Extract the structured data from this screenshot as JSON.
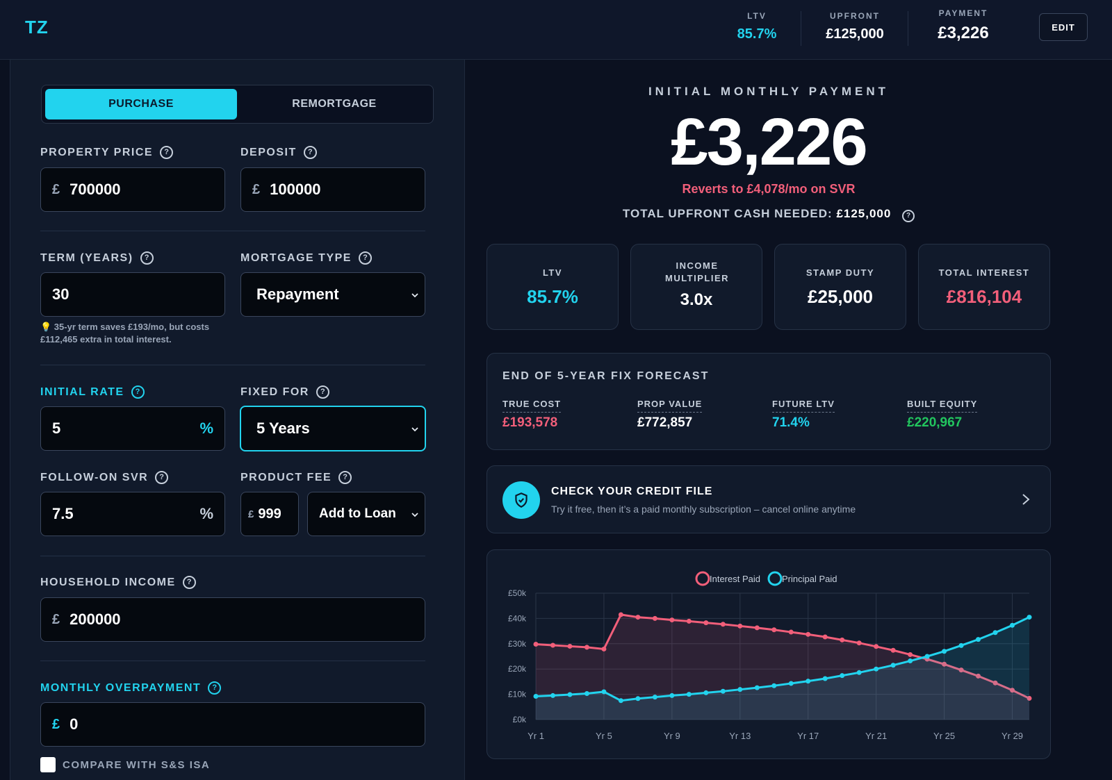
{
  "header": {
    "logo": "TZ",
    "stats": [
      {
        "label": "LTV",
        "value": "85.7%",
        "color": "#22d3ee"
      },
      {
        "label": "UPFRONT",
        "value": "£125,000"
      },
      {
        "label": "PAYMENT",
        "value": "£3,226"
      }
    ],
    "edit_label": "EDIT"
  },
  "form": {
    "mode_tabs": [
      {
        "label": "PURCHASE",
        "active": true
      },
      {
        "label": "REMORTGAGE",
        "active": false
      }
    ],
    "property_price": {
      "label": "PROPERTY PRICE",
      "currency": "£",
      "value": "700000"
    },
    "deposit": {
      "label": "DEPOSIT",
      "currency": "£",
      "value": "100000"
    },
    "term": {
      "label": "TERM (YEARS)",
      "value": "30",
      "hint": "💡 35-yr term saves £193/mo, but costs £112,465 extra in total interest."
    },
    "mortgage_type": {
      "label": "MORTGAGE TYPE",
      "value": "Repayment"
    },
    "initial_rate": {
      "label": "INITIAL RATE",
      "value": "5",
      "suffix": "%"
    },
    "fixed_for": {
      "label": "FIXED FOR",
      "value": "5 Years"
    },
    "follow_on_svr": {
      "label": "FOLLOW-ON SVR",
      "value": "7.5",
      "suffix": "%"
    },
    "product_fee": {
      "label": "PRODUCT FEE",
      "currency": "£",
      "value": "999",
      "option": "Add to Loan"
    },
    "household_income": {
      "label": "HOUSEHOLD INCOME",
      "currency": "£",
      "value": "200000"
    },
    "monthly_overpayment": {
      "label": "MONTHLY OVERPAYMENT",
      "currency": "£",
      "value": "0"
    },
    "compare_label": "COMPARE WITH S&S ISA"
  },
  "summary": {
    "title": "INITIAL MONTHLY PAYMENT",
    "payment": "£3,226",
    "reverts": "Reverts to £4,078/mo on SVR",
    "upfront_label": "TOTAL UPFRONT CASH NEEDED:",
    "upfront_value": "£125,000",
    "cards": [
      {
        "label": "LTV",
        "value": "85.7%",
        "color": "#22d3ee"
      },
      {
        "label": "INCOME MULTIPLIER",
        "value": "3.0x",
        "color": "#ffffff"
      },
      {
        "label": "STAMP DUTY",
        "value": "£25,000",
        "color": "#ffffff"
      },
      {
        "label": "TOTAL INTEREST",
        "value": "£816,104",
        "color": "#f25f7a"
      }
    ]
  },
  "forecast": {
    "title": "END OF 5-YEAR FIX FORECAST",
    "items": [
      {
        "label": "TRUE COST",
        "value": "£193,578",
        "color": "#f25f7a"
      },
      {
        "label": "PROP VALUE",
        "value": "£772,857",
        "color": "#ffffff"
      },
      {
        "label": "FUTURE LTV",
        "value": "71.4%",
        "color": "#22d3ee"
      },
      {
        "label": "BUILT EQUITY",
        "value": "£220,967",
        "color": "#22c55e"
      }
    ]
  },
  "credit": {
    "title": "CHECK YOUR CREDIT FILE",
    "subtitle": "Try it free, then it’s a paid monthly subscription – cancel online anytime"
  },
  "chart_data": {
    "type": "line",
    "x": [
      1,
      2,
      3,
      4,
      5,
      6,
      7,
      8,
      9,
      10,
      11,
      12,
      13,
      14,
      15,
      16,
      17,
      18,
      19,
      20,
      21,
      22,
      23,
      24,
      25,
      26,
      27,
      28,
      29,
      30
    ],
    "x_tick_labels": [
      "Yr 1",
      "Yr 5",
      "Yr 9",
      "Yr 13",
      "Yr 17",
      "Yr 21",
      "Yr 25",
      "Yr 29"
    ],
    "x_tick_values": [
      1,
      5,
      9,
      13,
      17,
      21,
      25,
      29
    ],
    "y_tick_labels": [
      "£0k",
      "£10k",
      "£20k",
      "£30k",
      "£40k",
      "£50k"
    ],
    "ylim": [
      0,
      50000
    ],
    "grid": true,
    "legend_position": "top-center",
    "series": [
      {
        "name": "Interest Paid",
        "color": "#f25f7a",
        "values": [
          29800,
          29400,
          29000,
          28600,
          27900,
          41500,
          40500,
          40000,
          39400,
          38900,
          38300,
          37700,
          37000,
          36300,
          35500,
          34600,
          33700,
          32700,
          31500,
          30300,
          28900,
          27400,
          25700,
          23900,
          21900,
          19600,
          17200,
          14500,
          11600,
          8400
        ]
      },
      {
        "name": "Principal Paid",
        "color": "#22d3ee",
        "values": [
          9200,
          9500,
          9900,
          10300,
          11000,
          7500,
          8300,
          8900,
          9500,
          10000,
          10600,
          11200,
          11900,
          12600,
          13400,
          14300,
          15200,
          16200,
          17400,
          18600,
          20000,
          21500,
          23200,
          25000,
          27000,
          29300,
          31700,
          34400,
          37300,
          40500
        ]
      }
    ]
  }
}
